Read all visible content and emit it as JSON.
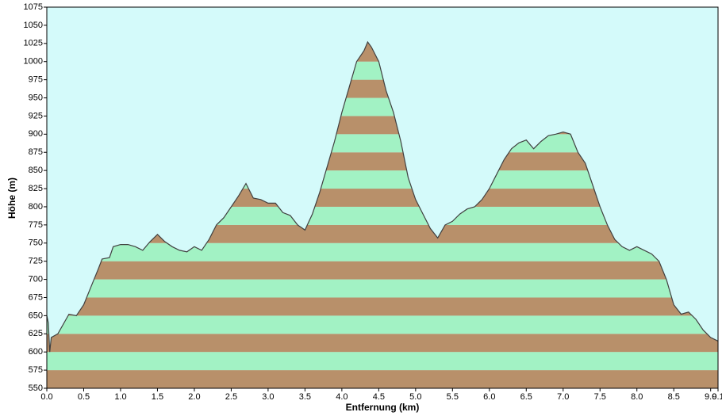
{
  "chart_data": {
    "type": "area",
    "xlabel": "Entfernung  (km)",
    "ylabel": "Höhe (m)",
    "x": [
      0.0,
      0.02,
      0.04,
      0.06,
      0.15,
      0.3,
      0.4,
      0.5,
      0.6,
      0.7,
      0.75,
      0.85,
      0.9,
      1.0,
      1.1,
      1.2,
      1.3,
      1.4,
      1.5,
      1.6,
      1.7,
      1.8,
      1.9,
      2.0,
      2.1,
      2.2,
      2.3,
      2.4,
      2.5,
      2.6,
      2.7,
      2.8,
      2.9,
      3.0,
      3.1,
      3.2,
      3.3,
      3.4,
      3.5,
      3.6,
      3.7,
      3.8,
      3.9,
      4.0,
      4.1,
      4.2,
      4.3,
      4.35,
      4.4,
      4.5,
      4.6,
      4.7,
      4.8,
      4.9,
      5.0,
      5.1,
      5.2,
      5.3,
      5.4,
      5.5,
      5.6,
      5.7,
      5.8,
      5.9,
      6.0,
      6.1,
      6.2,
      6.3,
      6.4,
      6.5,
      6.6,
      6.7,
      6.8,
      6.9,
      7.0,
      7.1,
      7.2,
      7.3,
      7.4,
      7.5,
      7.6,
      7.7,
      7.8,
      7.9,
      8.0,
      8.1,
      8.2,
      8.3,
      8.4,
      8.5,
      8.6,
      8.7,
      8.8,
      8.9,
      9.0,
      9.1
    ],
    "values": [
      650,
      640,
      600,
      620,
      625,
      652,
      650,
      665,
      690,
      715,
      728,
      730,
      745,
      748,
      748,
      745,
      740,
      752,
      762,
      752,
      745,
      740,
      738,
      745,
      740,
      755,
      775,
      785,
      800,
      815,
      832,
      812,
      810,
      805,
      805,
      792,
      788,
      775,
      768,
      790,
      820,
      855,
      890,
      930,
      965,
      1000,
      1015,
      1027,
      1020,
      1000,
      960,
      930,
      890,
      840,
      810,
      790,
      770,
      757,
      775,
      780,
      790,
      797,
      800,
      810,
      825,
      845,
      865,
      880,
      888,
      892,
      880,
      890,
      898,
      900,
      903,
      900,
      875,
      860,
      830,
      800,
      775,
      755,
      745,
      740,
      745,
      740,
      735,
      725,
      700,
      665,
      652,
      655,
      645,
      630,
      620,
      615
    ],
    "line_color": "#404040",
    "band_colors": [
      "#b8906a",
      "#a2f2c4"
    ],
    "background": "#d4fafa",
    "xlim": [
      0,
      9.1
    ],
    "xticks": [
      {
        "value": 0,
        "label": "0.0"
      },
      0.5,
      {
        "value": 1,
        "label": "1.0"
      },
      1.5,
      {
        "value": 2,
        "label": "2.0"
      },
      2.5,
      {
        "value": 3,
        "label": "3.0"
      },
      3.5,
      {
        "value": 4,
        "label": "4.0"
      },
      4.5,
      {
        "value": 5,
        "label": "5.0"
      },
      5.5,
      {
        "value": 6,
        "label": "6.0"
      },
      6.5,
      {
        "value": 7,
        "label": "7.0"
      },
      7.5,
      {
        "value": 8,
        "label": "8.0"
      },
      8.5,
      {
        "value": 9,
        "label": "9.0"
      },
      9.1
    ],
    "ylim": [
      550,
      1075
    ],
    "yticks": [
      550,
      575,
      600,
      625,
      650,
      675,
      700,
      725,
      750,
      775,
      800,
      825,
      850,
      875,
      900,
      925,
      950,
      975,
      1000,
      1025,
      1050,
      1075
    ]
  }
}
